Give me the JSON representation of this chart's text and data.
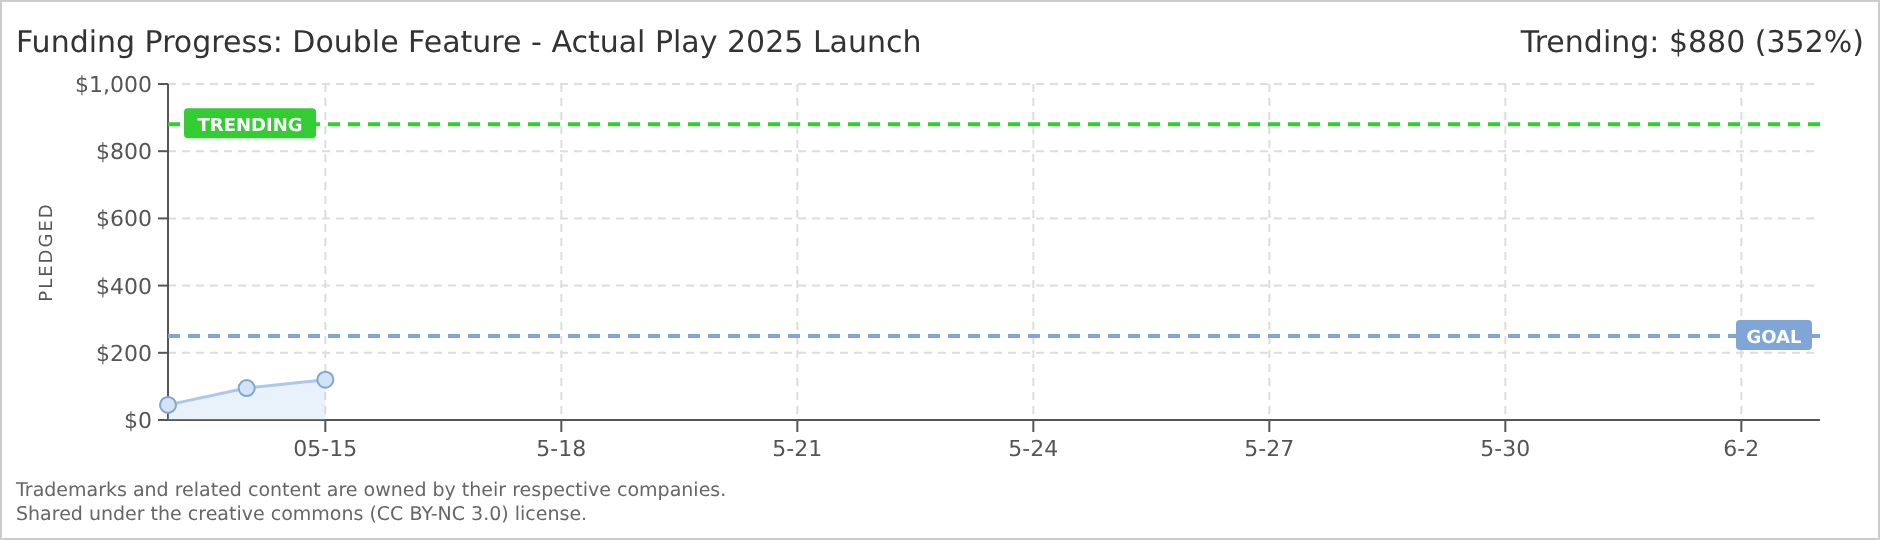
{
  "chart_data": {
    "type": "area",
    "title": "Funding Progress: Double Feature - Actual Play 2025 Launch",
    "subtitle": "Trending:  $880 (352%)",
    "ylabel": "PLEDGED",
    "x": [
      "2025-05-13",
      "2025-05-14",
      "2025-05-15"
    ],
    "series": [
      {
        "color": "#a9c8ec",
        "values": [
          45,
          95,
          120
        ]
      }
    ],
    "marker": "circle",
    "grid": true,
    "xlim": [
      "2025-05-13",
      "2025-06-03"
    ],
    "xticks": [
      {
        "value": "2025-05-15",
        "label": "05-15"
      },
      {
        "value": "2025-05-18",
        "label": "5-18"
      },
      {
        "value": "2025-05-21",
        "label": "5-21"
      },
      {
        "value": "2025-05-24",
        "label": "5-24"
      },
      {
        "value": "2025-05-27",
        "label": "5-27"
      },
      {
        "value": "2025-05-30",
        "label": "5-30"
      },
      {
        "value": "2025-06-02",
        "label": "6-2"
      }
    ],
    "ylim": [
      0,
      1000
    ],
    "yticks": [
      {
        "value": 0,
        "label": "$0"
      },
      {
        "value": 200,
        "label": "$200"
      },
      {
        "value": 400,
        "label": "$400"
      },
      {
        "value": 600,
        "label": "$600"
      },
      {
        "value": 800,
        "label": "$800"
      },
      {
        "value": 1000,
        "label": "$1,000"
      }
    ],
    "ref_lines": [
      {
        "axis": "y",
        "value": 880,
        "label": "TRENDING",
        "color": "#33cc33",
        "line_style": "dashed"
      },
      {
        "axis": "y",
        "value": 250,
        "label": "GOAL",
        "color": "#7fa6d6",
        "line_style": "dashed"
      }
    ],
    "annotations": [
      "Trademarks and related content are owned by their respective companies.",
      "Shared under the creative commons (CC BY-NC 3.0) license."
    ]
  }
}
